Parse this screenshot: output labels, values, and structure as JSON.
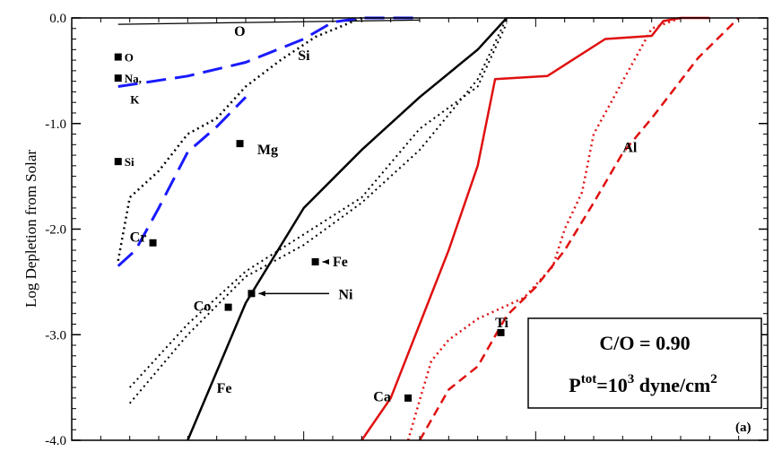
{
  "chart_data": {
    "type": "line",
    "ylabel": "Log Depletion from Solar",
    "ylim": [
      -4.0,
      0.0
    ],
    "y_ticks": [
      "0.0",
      "-1.0",
      "-2.0",
      "-3.0",
      "-4.0"
    ],
    "x_ticks_labeled": false,
    "grid": false,
    "panel_label": "(a)",
    "infobox": {
      "line1": "C/O = 0.90",
      "p_main": "P",
      "p_sup": "tot",
      "p_eq": "=10",
      "p_exp": "3",
      "p_unit": " dyne/cm",
      "p_unit_exp": "2"
    },
    "series": [
      {
        "color": "#000000",
        "dash": "solid",
        "width": 1.2,
        "x": [
          0.08,
          0.6
        ],
        "y": [
          -0.06,
          -0.02
        ]
      },
      {
        "color": "#1a1aff",
        "dash": "long-dash",
        "width": 3,
        "x": [
          0.08,
          0.2,
          0.3,
          0.4,
          0.45,
          0.5,
          0.6
        ],
        "y": [
          -0.65,
          -0.55,
          -0.42,
          -0.2,
          -0.04,
          0.0,
          0.0
        ]
      },
      {
        "color": "#1a1aff",
        "dash": "long-dash",
        "width": 3,
        "x": [
          0.08,
          0.11,
          0.15,
          0.2,
          0.25,
          0.3
        ],
        "y": [
          -2.35,
          -2.2,
          -1.8,
          -1.27,
          -1.03,
          -0.75
        ]
      },
      {
        "color": "#000000",
        "dash": "dot",
        "width": 2.5,
        "x": [
          0.08,
          0.1,
          0.15,
          0.2,
          0.25,
          0.3,
          0.36,
          0.42,
          0.5
        ],
        "y": [
          -2.3,
          -1.7,
          -1.45,
          -1.1,
          -0.95,
          -0.65,
          -0.4,
          -0.18,
          0.0
        ]
      },
      {
        "color": "#000000",
        "dash": "solid",
        "width": 2.5,
        "x": [
          0.2,
          0.3,
          0.4,
          0.5,
          0.6,
          0.7,
          0.75
        ],
        "y": [
          -4.0,
          -2.7,
          -1.8,
          -1.25,
          -0.75,
          -0.3,
          0.0
        ]
      },
      {
        "color": "#000000",
        "dash": "dot",
        "width": 2,
        "x": [
          0.1,
          0.2,
          0.3,
          0.4,
          0.5,
          0.6,
          0.7,
          0.75
        ],
        "y": [
          -3.5,
          -2.9,
          -2.4,
          -2.05,
          -1.7,
          -1.05,
          -0.65,
          -0.05
        ]
      },
      {
        "color": "#000000",
        "dash": "dot",
        "width": 2,
        "x": [
          0.1,
          0.2,
          0.3,
          0.4,
          0.5,
          0.6,
          0.7,
          0.75
        ],
        "y": [
          -3.65,
          -3.0,
          -2.45,
          -2.15,
          -1.75,
          -1.25,
          -0.58,
          0.0
        ]
      },
      {
        "color": "#000000",
        "dash": "solid",
        "width": 1.5,
        "x": [
          0.75,
          1.0
        ],
        "y": [
          0.0,
          0.0
        ]
      },
      {
        "color": "#e01010",
        "dash": "solid",
        "width": 2.5,
        "x": [
          0.5,
          0.55,
          0.6,
          0.65,
          0.7,
          0.73,
          0.82,
          0.92,
          1.0,
          1.02,
          1.05,
          1.1
        ],
        "y": [
          -4.0,
          -3.6,
          -2.9,
          -2.2,
          -1.4,
          -0.58,
          -0.55,
          -0.2,
          -0.17,
          -0.03,
          0.0,
          0.0
        ]
      },
      {
        "color": "#e01010",
        "dash": "dot",
        "width": 2.5,
        "x": [
          0.58,
          0.6,
          0.62,
          0.65,
          0.7,
          0.78,
          0.83,
          0.85,
          0.88,
          0.9,
          0.95,
          1.0,
          1.05
        ],
        "y": [
          -4.0,
          -3.62,
          -3.25,
          -3.05,
          -2.85,
          -2.65,
          -2.35,
          -2.0,
          -1.65,
          -1.1,
          -0.6,
          -0.1,
          0.0
        ]
      },
      {
        "color": "#e01010",
        "dash": "dash",
        "width": 2.5,
        "x": [
          0.6,
          0.65,
          0.7,
          0.75,
          0.8,
          0.85,
          0.9,
          0.95,
          1.0,
          1.08,
          1.15
        ],
        "y": [
          -4.0,
          -3.52,
          -3.3,
          -2.82,
          -2.55,
          -2.2,
          -1.75,
          -1.28,
          -0.95,
          -0.38,
          0.0
        ]
      }
    ],
    "markers": [
      {
        "label": "O",
        "x": 0.08,
        "y": -0.37
      },
      {
        "label": "Na,",
        "x": 0.08,
        "y": -0.57
      },
      {
        "label": "K",
        "x": 0.09,
        "y": -0.77,
        "text_only": true
      },
      {
        "label": "Si",
        "x": 0.08,
        "y": -1.36
      },
      {
        "label": "Mg",
        "x": 0.29,
        "y": -1.19
      },
      {
        "label": "Cr",
        "x": 0.14,
        "y": -2.13
      },
      {
        "label": "Co",
        "x": 0.27,
        "y": -2.74
      },
      {
        "label": "Fe",
        "x": 0.42,
        "y": -2.31
      },
      {
        "label": "Ni",
        "x": 0.31,
        "y": -2.61
      },
      {
        "label": "Ca",
        "x": 0.58,
        "y": -3.6
      },
      {
        "label": "Ti",
        "x": 0.74,
        "y": -2.98
      }
    ],
    "annotations": [
      {
        "text": "O",
        "x": 0.28,
        "y": -0.12
      },
      {
        "text": "Si",
        "x": 0.39,
        "y": -0.35
      },
      {
        "text": "Mg",
        "x": 0.32,
        "y": -1.24
      },
      {
        "text": "Cr",
        "x": 0.1,
        "y": -2.07
      },
      {
        "text": "Co",
        "x": 0.21,
        "y": -2.72
      },
      {
        "text": "Fe",
        "x": 0.45,
        "y": -2.3
      },
      {
        "text": "Ni",
        "x": 0.46,
        "y": -2.61
      },
      {
        "text": "Fe",
        "x": 0.25,
        "y": -3.5
      },
      {
        "text": "Ca",
        "x": 0.52,
        "y": -3.58
      },
      {
        "text": "Ti",
        "x": 0.73,
        "y": -2.88
      },
      {
        "text": "Al",
        "x": 0.95,
        "y": -1.22
      }
    ]
  }
}
